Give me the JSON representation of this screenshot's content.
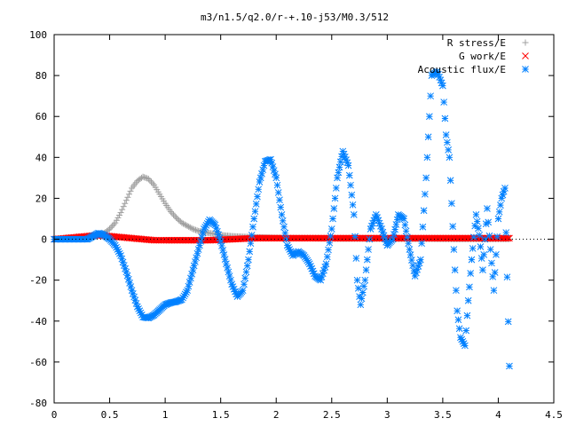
{
  "chart_data": {
    "type": "scatter",
    "title": "m3/n1.5/q2.0/r-+.10-j53/M0.3/512",
    "xlabel": "",
    "ylabel": "",
    "xlim": [
      0,
      4.5
    ],
    "ylim": [
      -80,
      100
    ],
    "xticks": [
      "0",
      "0.5",
      "1",
      "1.5",
      "2",
      "2.5",
      "3",
      "3.5",
      "4",
      "4.5"
    ],
    "yticks": [
      "-80",
      "-60",
      "-40",
      "-20",
      "0",
      "20",
      "40",
      "60",
      "80",
      "100"
    ],
    "grid": false,
    "legend_position": "top-right",
    "series": [
      {
        "name": "R stress/E",
        "marker": "+",
        "color": "#a0a0a0",
        "x": [
          0.4,
          0.45,
          0.5,
          0.55,
          0.6,
          0.65,
          0.7,
          0.75,
          0.8,
          0.85,
          0.9,
          0.95,
          1.0,
          1.05,
          1.1,
          1.15,
          1.2,
          1.25,
          1.3,
          1.35,
          1.4,
          1.45,
          1.5,
          1.6,
          1.7,
          1.8,
          1.9,
          2.0,
          2.2,
          2.4,
          2.6,
          2.8,
          3.0,
          3.2,
          3.4,
          3.6,
          3.8,
          4.0,
          4.1
        ],
        "y": [
          2.0,
          3.0,
          5.0,
          8.0,
          13.0,
          19.0,
          25.0,
          28.5,
          30.5,
          29.5,
          26.5,
          22.0,
          17.5,
          13.5,
          10.5,
          8.0,
          6.5,
          5.0,
          4.0,
          3.5,
          3.0,
          2.5,
          2.0,
          1.5,
          1.2,
          1.0,
          0.8,
          0.7,
          0.5,
          0.4,
          0.3,
          0.3,
          0.2,
          0.2,
          0.2,
          0.1,
          0.1,
          0.1,
          0.1
        ]
      },
      {
        "name": "G work/E",
        "marker": "x",
        "color": "#ff0000",
        "x": [
          0.0,
          0.4,
          0.5,
          0.6,
          0.7,
          0.8,
          0.9,
          1.0,
          1.2,
          1.4,
          1.6,
          1.8,
          2.0,
          2.2,
          2.4,
          2.6,
          2.8,
          3.0,
          3.2,
          3.4,
          3.6,
          3.8,
          4.0,
          4.1
        ],
        "y": [
          0.0,
          2.0,
          1.5,
          1.0,
          0.5,
          0.0,
          -0.5,
          -0.5,
          -0.5,
          -0.5,
          0.0,
          0.5,
          0.5,
          0.5,
          0.5,
          0.5,
          0.5,
          0.5,
          0.5,
          0.5,
          0.5,
          0.5,
          0.5,
          0.5
        ]
      },
      {
        "name": "Acoustic flux/E",
        "marker": "*",
        "color": "#0080ff",
        "x": [
          0.0,
          0.1,
          0.2,
          0.3,
          0.4,
          0.45,
          0.5,
          0.55,
          0.6,
          0.65,
          0.7,
          0.75,
          0.8,
          0.85,
          0.9,
          0.95,
          1.0,
          1.05,
          1.1,
          1.15,
          1.2,
          1.25,
          1.3,
          1.35,
          1.4,
          1.45,
          1.5,
          1.55,
          1.6,
          1.65,
          1.7,
          1.75,
          1.8,
          1.85,
          1.9,
          1.95,
          2.0,
          2.05,
          2.1,
          2.15,
          2.2,
          2.25,
          2.3,
          2.35,
          2.4,
          2.45,
          2.5,
          2.55,
          2.6,
          2.65,
          2.7,
          2.73,
          2.76,
          2.8,
          2.85,
          2.9,
          2.95,
          3.0,
          3.05,
          3.1,
          3.15,
          3.2,
          3.25,
          3.3,
          3.35,
          3.4,
          3.45,
          3.5,
          3.53,
          3.56,
          3.6,
          3.63,
          3.66,
          3.7,
          3.73,
          3.76,
          3.8,
          3.83,
          3.86,
          3.9,
          3.93,
          3.96,
          4.0,
          4.03,
          4.06,
          4.1
        ],
        "y": [
          0.0,
          0.0,
          0.0,
          0.0,
          3.0,
          2.0,
          0.0,
          -3.0,
          -8.0,
          -16.0,
          -25.0,
          -33.0,
          -38.0,
          -38.5,
          -37.0,
          -34.5,
          -32.0,
          -31.0,
          -30.5,
          -29.5,
          -25.0,
          -15.0,
          -5.0,
          5.0,
          9.5,
          7.0,
          -1.0,
          -12.0,
          -22.0,
          -28.0,
          -25.0,
          -10.0,
          10.0,
          28.0,
          38.0,
          39.0,
          30.0,
          12.0,
          -3.0,
          -8.0,
          -6.0,
          -8.0,
          -12.0,
          -18.0,
          -20.0,
          -12.0,
          5.0,
          30.0,
          43.0,
          36.0,
          12.0,
          -20.0,
          -32.0,
          -20.0,
          5.0,
          12.0,
          5.0,
          -3.0,
          0.0,
          12.0,
          10.0,
          -5.0,
          -18.0,
          -10.0,
          30.0,
          80.0,
          82.0,
          75.0,
          51.0,
          40.0,
          -5.0,
          -35.0,
          -48.0,
          -52.0,
          -30.0,
          -10.0,
          12.0,
          2.0,
          -15.0,
          15.0,
          -5.0,
          -25.0,
          10.0,
          20.0,
          25.0,
          -62.0
        ]
      }
    ]
  }
}
